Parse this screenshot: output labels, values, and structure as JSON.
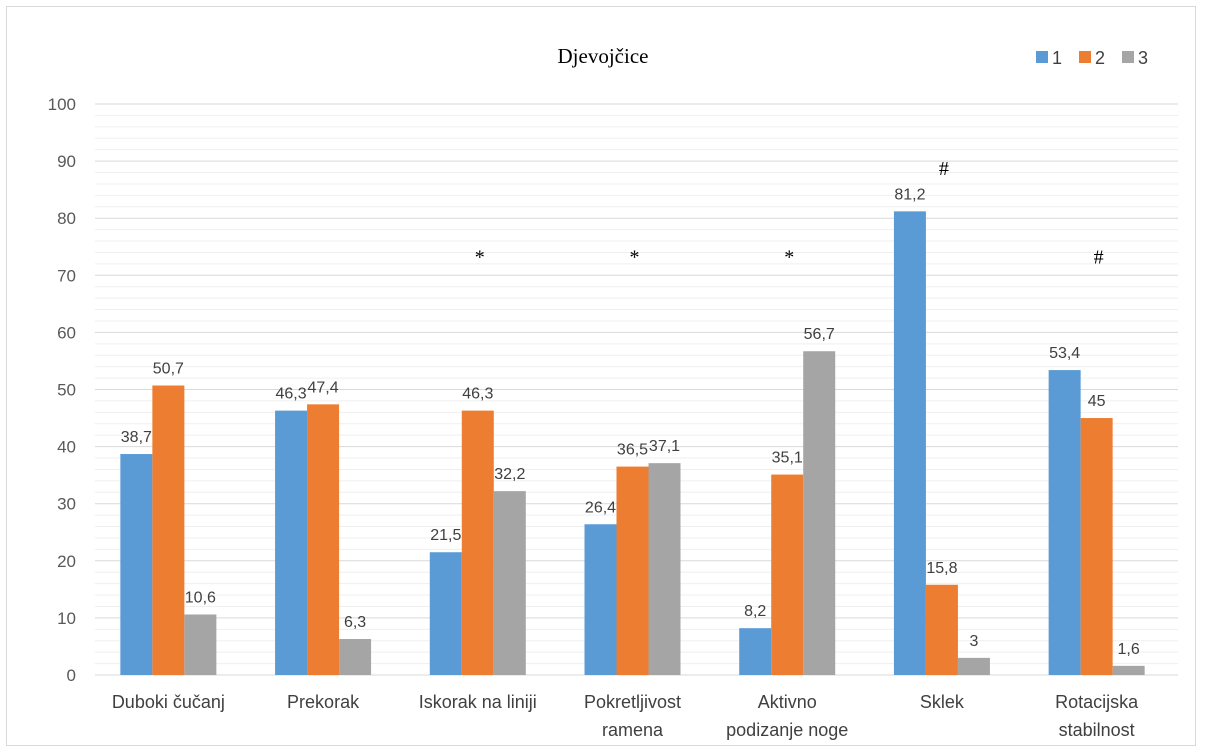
{
  "chart_data": {
    "type": "bar",
    "title": "Djevojčice",
    "xlabel": "",
    "ylabel": "",
    "ylim": [
      0,
      100
    ],
    "yticks": [
      0,
      10,
      20,
      30,
      40,
      50,
      60,
      70,
      80,
      90,
      100
    ],
    "grid": true,
    "legend_position": "top-right",
    "categories": [
      [
        "Duboki čučanj"
      ],
      [
        "Prekorak"
      ],
      [
        "Iskorak na liniji"
      ],
      [
        "Pokretljivost",
        "ramena"
      ],
      [
        "Aktivno",
        "podizanje noge"
      ],
      [
        "Sklek"
      ],
      [
        "Rotacijska",
        "stabilnost"
      ]
    ],
    "series": [
      {
        "name": "1",
        "color": "#5b9bd5",
        "values": [
          38.7,
          46.3,
          21.5,
          26.4,
          8.2,
          81.2,
          53.4
        ],
        "labels": [
          "38,7",
          "46,3",
          "21,5",
          "26,4",
          "8,2",
          "81,2",
          "53,4"
        ]
      },
      {
        "name": "2",
        "color": "#ed7d31",
        "values": [
          50.7,
          47.4,
          46.3,
          36.5,
          35.1,
          15.8,
          45
        ],
        "labels": [
          "50,7",
          "47,4",
          "46,3",
          "36,5",
          "35,1",
          "15,8",
          "45"
        ]
      },
      {
        "name": "3",
        "color": "#a5a5a5",
        "values": [
          10.6,
          6.3,
          32.2,
          37.1,
          56.7,
          3,
          1.6
        ],
        "labels": [
          "10,6",
          "6,3",
          "32,2",
          "37,1",
          "56,7",
          "3",
          "1,6"
        ]
      }
    ],
    "annotations": [
      {
        "category_index": 2,
        "text": "*",
        "y": 73.5
      },
      {
        "category_index": 3,
        "text": "*",
        "y": 73.5
      },
      {
        "category_index": 4,
        "text": "*",
        "y": 73.5
      },
      {
        "category_index": 5,
        "text": "#",
        "y": 89
      },
      {
        "category_index": 6,
        "text": "#",
        "y": 73.5
      }
    ]
  }
}
